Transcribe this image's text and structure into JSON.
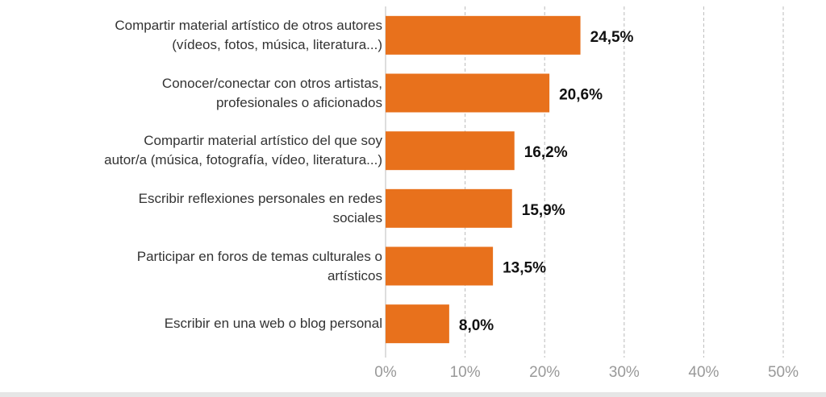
{
  "chart_data": {
    "type": "barh",
    "categories": [
      "Compartir material artístico de otros autores\n(vídeos, fotos, música, literatura...)",
      "Conocer/conectar con otros artistas,\nprofesionales o aficionados",
      "Compartir material artístico del que soy\nautor/a (música, fotografía, vídeo, literatura...)",
      "Escribir reflexiones personales en redes\nsociales",
      "Participar en foros de temas culturales o\nartísticos",
      "Escribir en una web o blog personal"
    ],
    "values": [
      24.5,
      20.6,
      16.2,
      15.9,
      13.5,
      8.0
    ],
    "value_labels": [
      "24,5%",
      "20,6%",
      "16,2%",
      "15,9%",
      "13,5%",
      "8,0%"
    ],
    "color": "#e8711c",
    "xlim": [
      0,
      50
    ],
    "xticks": [
      {
        "value": 0,
        "label": "0%"
      },
      {
        "value": 10,
        "label": "10%"
      },
      {
        "value": 20,
        "label": "20%"
      },
      {
        "value": 30,
        "label": "30%"
      },
      {
        "value": 40,
        "label": "40%"
      },
      {
        "value": 50,
        "label": "50%"
      }
    ],
    "grid": true
  }
}
